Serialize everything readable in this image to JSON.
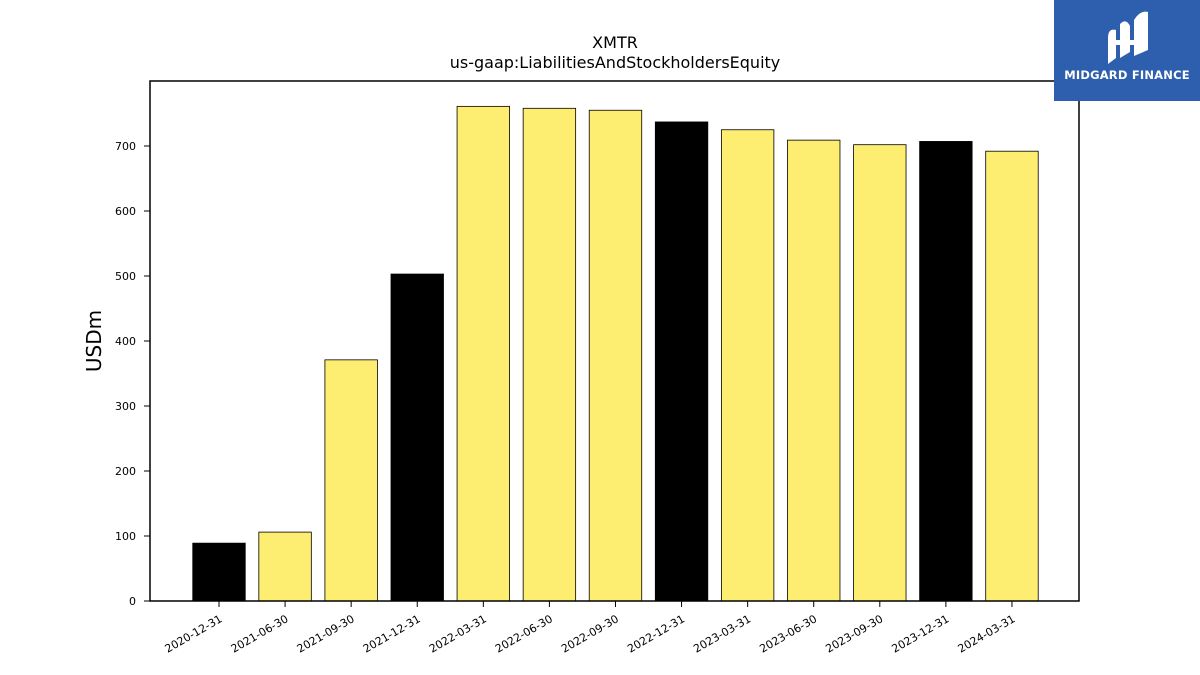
{
  "chart_data": {
    "type": "bar",
    "title": "XMTR",
    "subtitle": "us-gaap:LiabilitiesAndStockholdersEquity",
    "xlabel": "",
    "ylabel": "USDm",
    "ylim": [
      0,
      800
    ],
    "yticks": [
      0,
      100,
      200,
      300,
      400,
      500,
      600,
      700
    ],
    "grid": false,
    "categories": [
      "2020-12-31",
      "2021-06-30",
      "2021-09-30",
      "2021-12-31",
      "2022-03-31",
      "2022-06-30",
      "2022-09-30",
      "2022-12-31",
      "2023-03-31",
      "2023-06-30",
      "2023-09-30",
      "2023-12-31",
      "2024-03-31"
    ],
    "values": [
      89,
      106,
      371,
      503,
      761,
      758,
      755,
      737,
      725,
      709,
      702,
      707,
      692
    ],
    "bar_colors": [
      "#000000",
      "#fded71",
      "#fded71",
      "#000000",
      "#fded71",
      "#fded71",
      "#fded71",
      "#000000",
      "#fded71",
      "#fded71",
      "#fded71",
      "#000000",
      "#fded71"
    ]
  },
  "logo": {
    "text": "MIDGARD FINANCE",
    "background": "#2d5fae"
  }
}
